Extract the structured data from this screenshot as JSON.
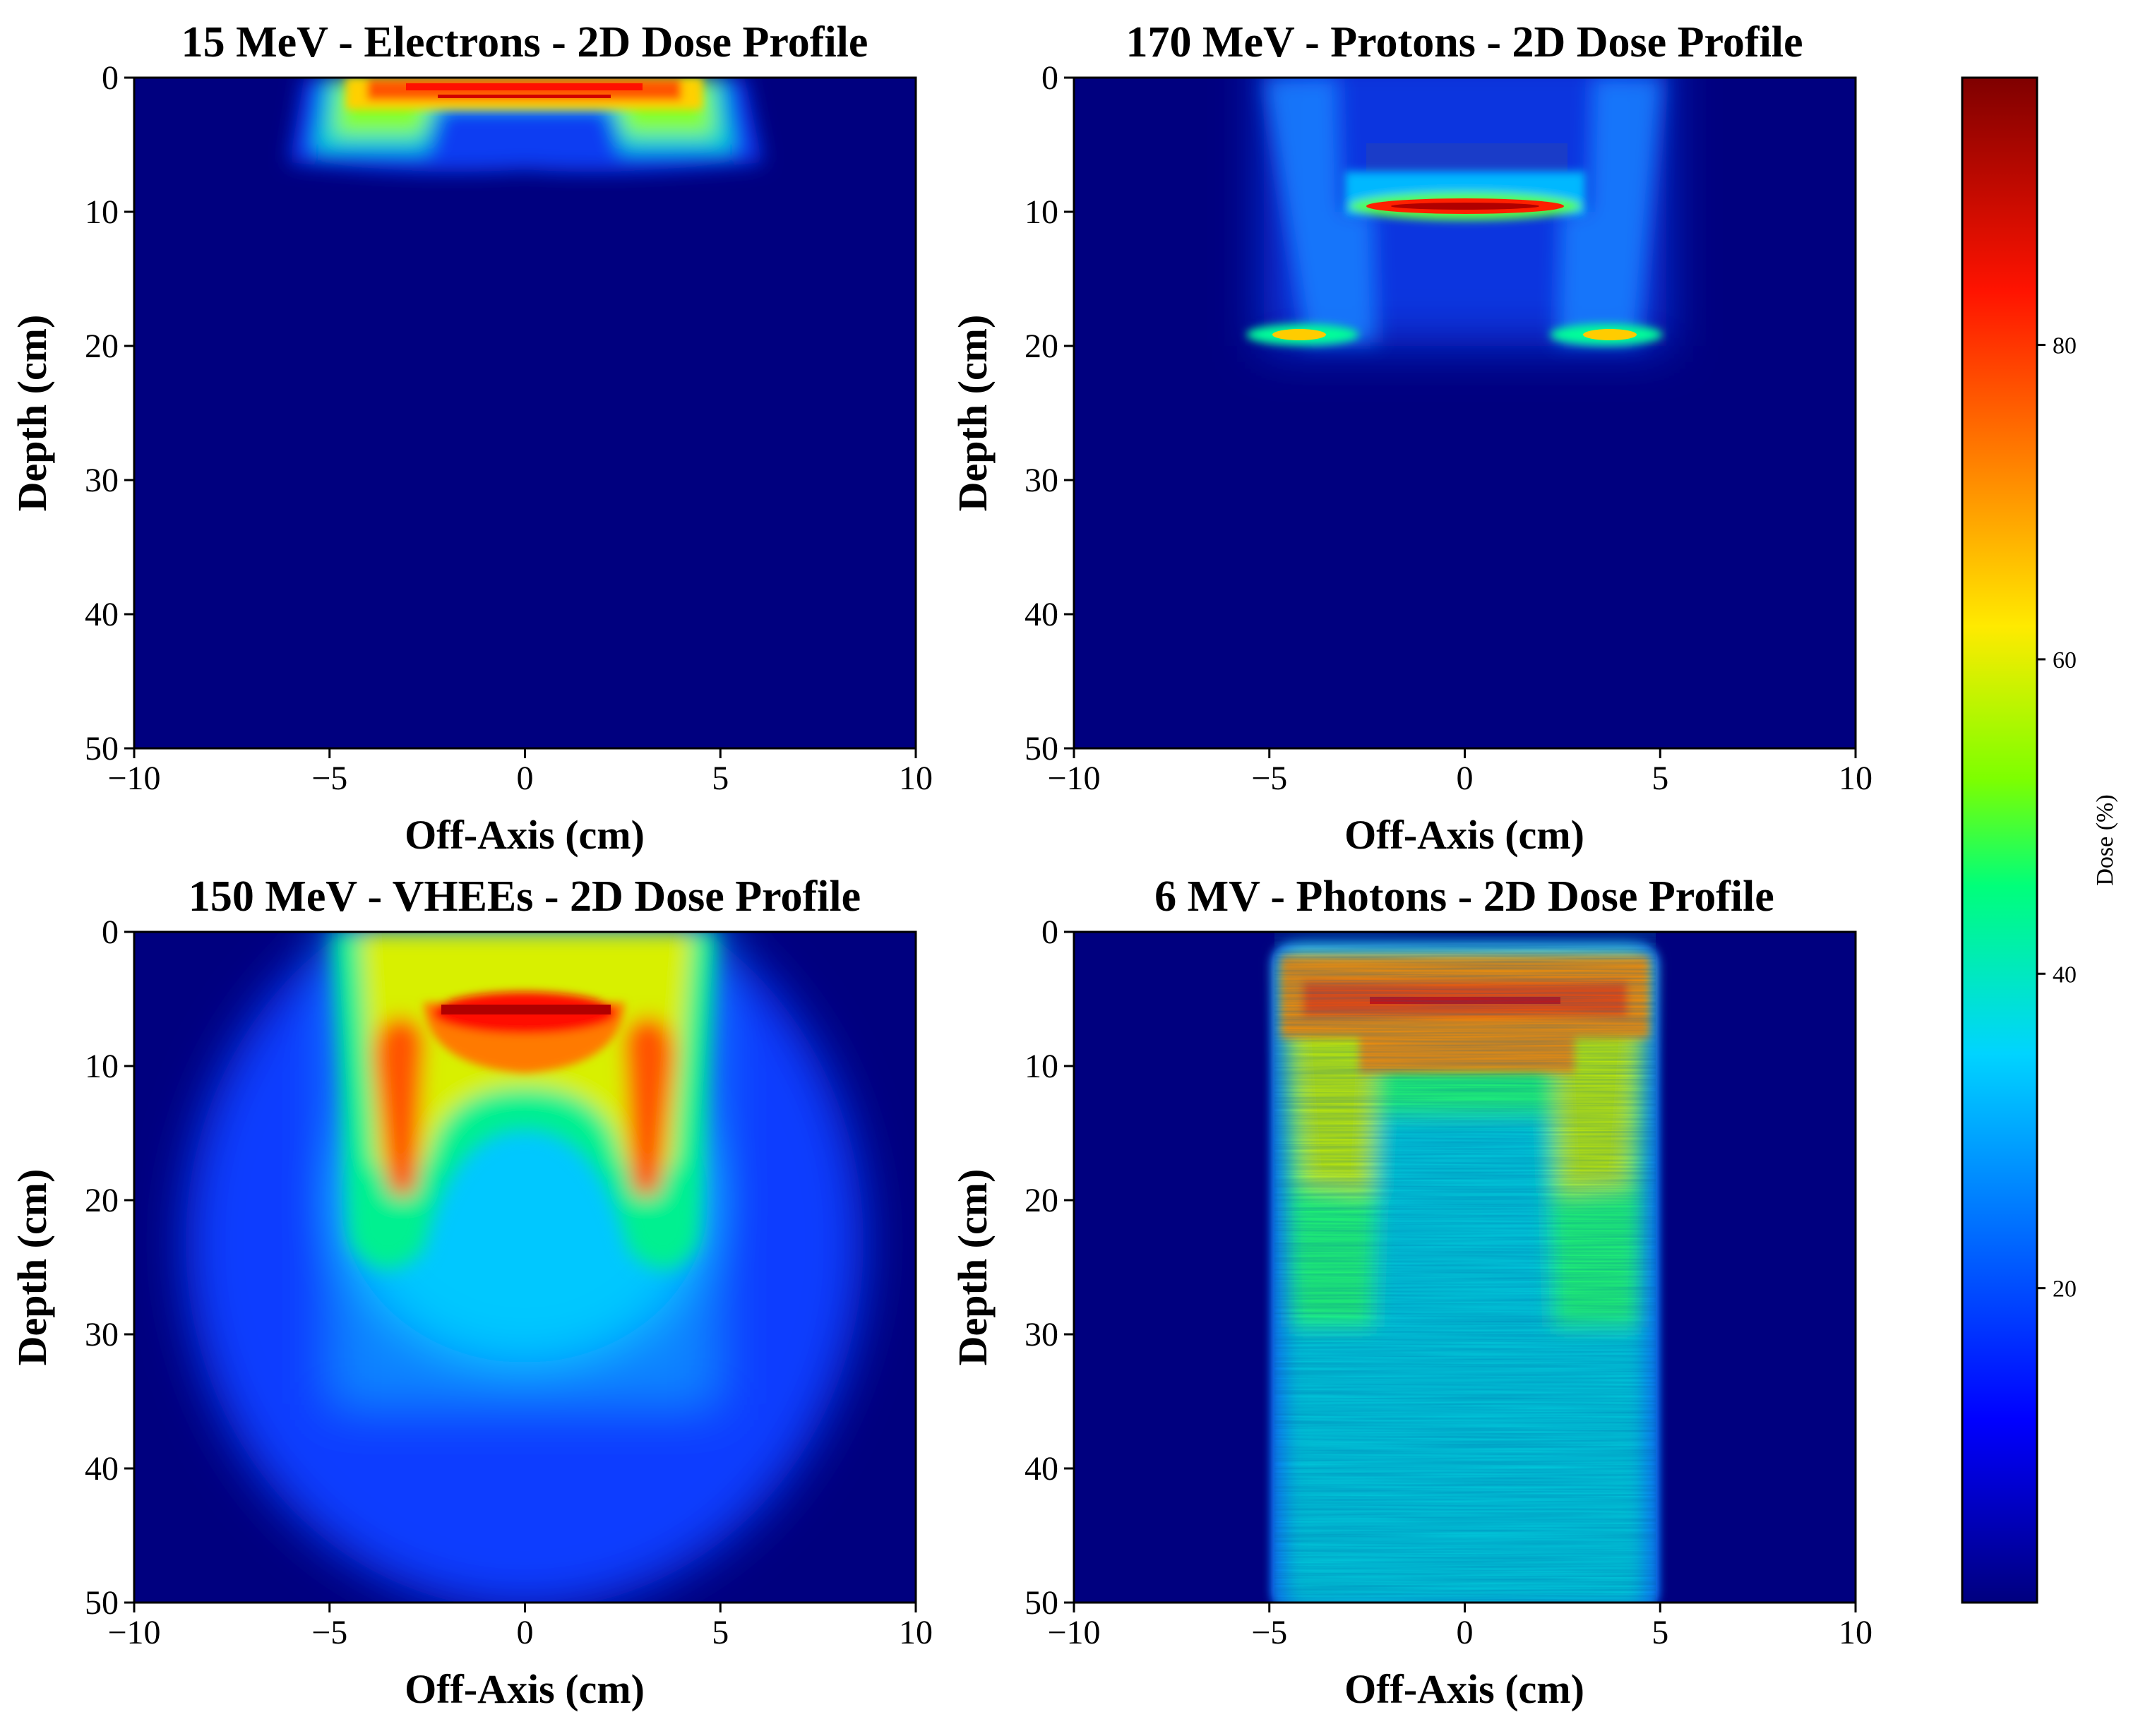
{
  "figure": {
    "colorbar": {
      "label": "Dose (%)",
      "range": [
        0,
        97
      ],
      "ticks": [
        20,
        40,
        60,
        80
      ]
    }
  },
  "chart_data": [
    {
      "type": "heatmap",
      "id": "electrons",
      "title": "15 MeV - Electrons - 2D Dose Profile",
      "xlabel": "Off-Axis (cm)",
      "ylabel": "Depth (cm)",
      "xlim": [
        -10,
        10
      ],
      "ylim": [
        50,
        0
      ],
      "xticks": [
        -10,
        -5,
        0,
        5,
        10
      ],
      "yticks": [
        0,
        10,
        20,
        30,
        40,
        50
      ],
      "value_units": "Dose (%)",
      "features": [
        {
          "desc": "hot shallow band",
          "x_range": [
            -4.5,
            4.5
          ],
          "depth_range": [
            0,
            2
          ],
          "peak_dose": 85
        },
        {
          "desc": "side lobes",
          "x_center": [
            -3.5,
            3.5
          ],
          "depth_range": [
            0,
            6
          ],
          "dose": 65
        }
      ]
    },
    {
      "type": "heatmap",
      "id": "protons",
      "title": "170 MeV - Protons - 2D Dose Profile",
      "xlabel": "Off-Axis (cm)",
      "ylabel": "Depth (cm)",
      "xlim": [
        -10,
        10
      ],
      "ylim": [
        50,
        0
      ],
      "xticks": [
        -10,
        -5,
        0,
        5,
        10
      ],
      "yticks": [
        0,
        10,
        20,
        30,
        40,
        50
      ],
      "value_units": "Dose (%)",
      "features": [
        {
          "desc": "Bragg peak central",
          "x_range": [
            -2.5,
            2.5
          ],
          "depth": 9.8,
          "peak_dose": 95
        },
        {
          "desc": "Bragg peaks lateral",
          "x_center": [
            -3.5,
            3.5
          ],
          "depth": 19.3,
          "peak_dose": 60
        },
        {
          "desc": "entrance plateau",
          "x_range": [
            -5,
            5
          ],
          "depth_range": [
            0,
            19.5
          ],
          "dose": 18
        }
      ]
    },
    {
      "type": "heatmap",
      "id": "vhee",
      "title": "150 MeV - VHEEs - 2D Dose Profile",
      "xlabel": "Off-Axis (cm)",
      "ylabel": "Depth (cm)",
      "xlim": [
        -10,
        10
      ],
      "ylim": [
        50,
        0
      ],
      "xticks": [
        -10,
        -5,
        0,
        5,
        10
      ],
      "yticks": [
        0,
        10,
        20,
        30,
        40,
        50
      ],
      "value_units": "Dose (%)",
      "features": [
        {
          "desc": "central maximum",
          "x_range": [
            -2.5,
            2.5
          ],
          "depth": 7,
          "peak_dose": 92
        },
        {
          "desc": "lateral arms",
          "x_center": [
            -3.4,
            3.4
          ],
          "depth_range": [
            6,
            18
          ],
          "dose": 78
        },
        {
          "desc": "deep tail",
          "x_range": [
            -8,
            8
          ],
          "depth_range": [
            20,
            50
          ],
          "dose": 20
        }
      ]
    },
    {
      "type": "heatmap",
      "id": "photons",
      "title": "6 MV - Photons - 2D Dose Profile",
      "xlabel": "Off-Axis (cm)",
      "ylabel": "Depth (cm)",
      "xlim": [
        -10,
        10
      ],
      "ylim": [
        50,
        0
      ],
      "xticks": [
        -10,
        -5,
        0,
        5,
        10
      ],
      "yticks": [
        0,
        10,
        20,
        30,
        40,
        50
      ],
      "value_units": "Dose (%)",
      "features": [
        {
          "desc": "build-up maximum",
          "x_range": [
            -4.8,
            4.8
          ],
          "depth_range": [
            1.5,
            7
          ],
          "peak_dose": 80
        },
        {
          "desc": "central hot line",
          "x_range": [
            -2.5,
            2.5
          ],
          "depth": 5,
          "peak_dose": 88
        },
        {
          "desc": "lateral arms",
          "x_center": [
            -3.7,
            3.7
          ],
          "depth_range": [
            7,
            20
          ],
          "dose": 68
        },
        {
          "desc": "field body",
          "x_range": [
            -5,
            5
          ],
          "depth_range": [
            7,
            50
          ],
          "dose": 38
        }
      ]
    }
  ]
}
